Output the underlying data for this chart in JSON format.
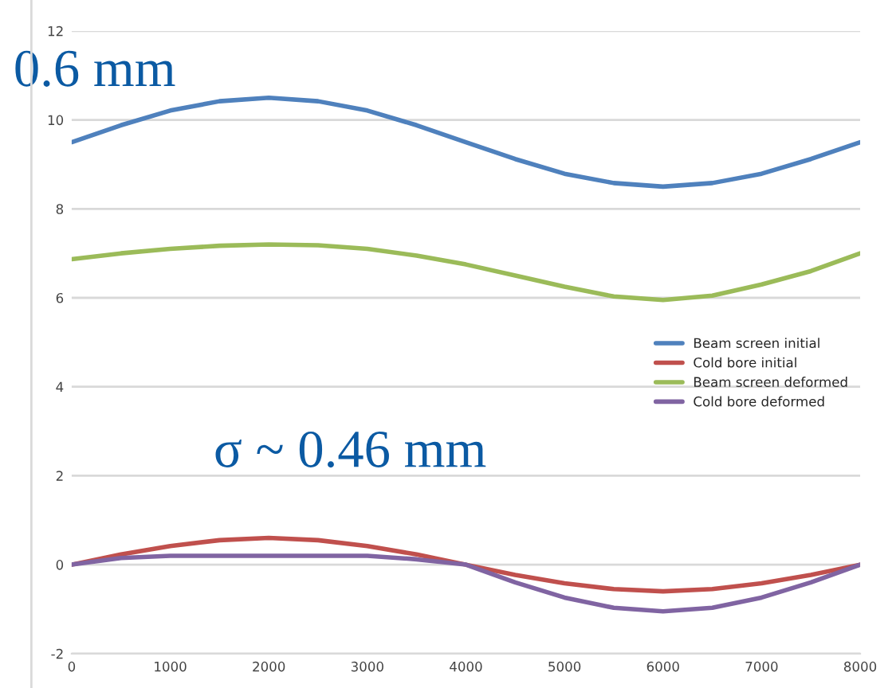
{
  "chart_data": {
    "type": "line",
    "x": [
      0,
      500,
      1000,
      1500,
      2000,
      2500,
      3000,
      3500,
      4000,
      4500,
      5000,
      5500,
      6000,
      6500,
      7000,
      7500,
      8000
    ],
    "series": [
      {
        "name": "Beam screen initial",
        "color": "#4f81bd",
        "values": [
          9.5,
          9.88,
          10.21,
          10.42,
          10.5,
          10.42,
          10.21,
          9.88,
          9.5,
          9.12,
          8.79,
          8.58,
          8.5,
          8.58,
          8.79,
          9.12,
          9.5
        ]
      },
      {
        "name": "Cold bore initial",
        "color": "#c0504d",
        "values": [
          0,
          0.23,
          0.42,
          0.55,
          0.6,
          0.55,
          0.42,
          0.23,
          0,
          -0.23,
          -0.42,
          -0.55,
          -0.6,
          -0.55,
          -0.42,
          -0.23,
          0
        ]
      },
      {
        "name": "Beam screen deformed",
        "color": "#9bbb59",
        "values": [
          6.87,
          7.0,
          7.1,
          7.17,
          7.2,
          7.18,
          7.1,
          6.95,
          6.75,
          6.5,
          6.25,
          6.03,
          5.95,
          6.05,
          6.3,
          6.6,
          7.0
        ]
      },
      {
        "name": "Cold bore deformed",
        "color": "#8064a2",
        "values": [
          0,
          0.15,
          0.2,
          0.2,
          0.2,
          0.2,
          0.2,
          0.12,
          0,
          -0.4,
          -0.74,
          -0.97,
          -1.05,
          -0.97,
          -0.74,
          -0.4,
          0
        ]
      }
    ],
    "xlim": [
      0,
      8000
    ],
    "xticks": [
      0,
      1000,
      2000,
      3000,
      4000,
      5000,
      6000,
      7000,
      8000
    ],
    "ylim": [
      -2,
      12
    ],
    "yticks": [
      -2,
      0,
      2,
      4,
      6,
      8,
      10,
      12
    ],
    "grid": "y",
    "legend": "right",
    "marker": "none",
    "line_style": "solid",
    "annotations": [
      "0.6 mm",
      "σ ~ 0.46 mm"
    ]
  }
}
